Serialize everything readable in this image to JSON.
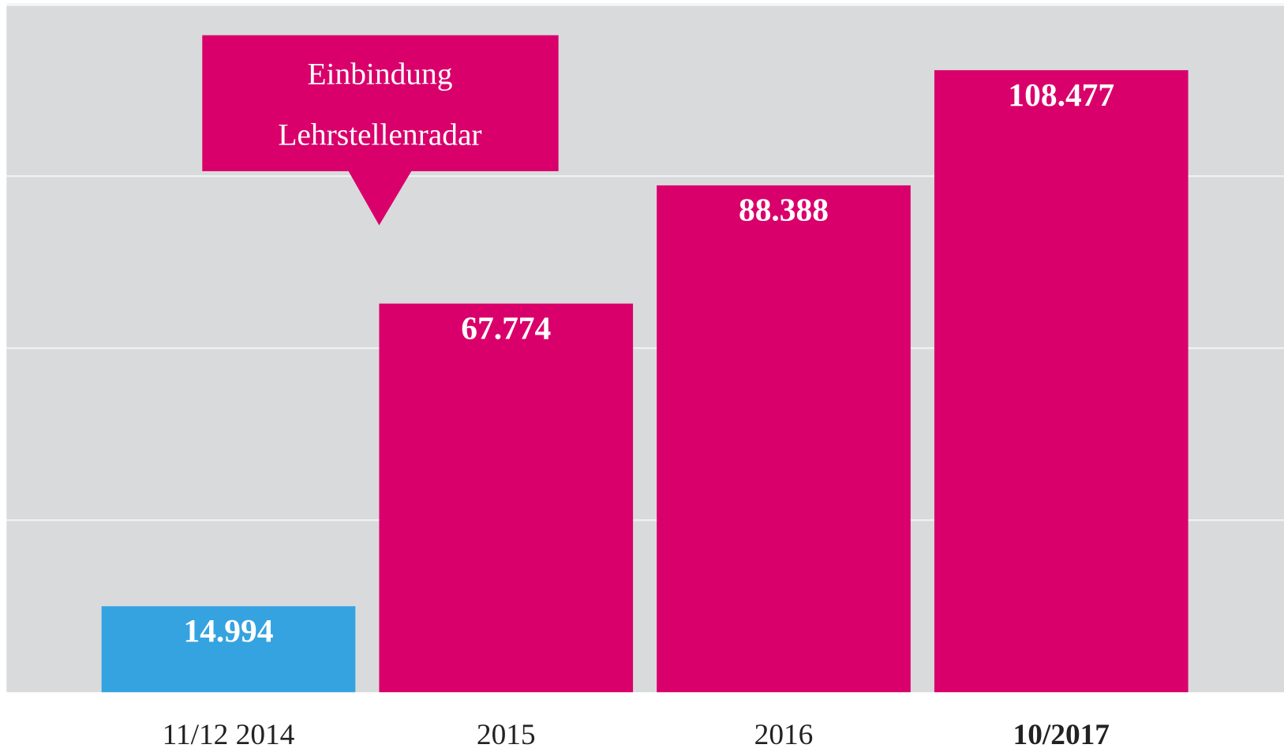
{
  "chart_data": {
    "type": "bar",
    "categories": [
      "11/12 2014",
      "2015",
      "2016",
      "10/2017"
    ],
    "values": [
      14994,
      67774,
      88388,
      108477
    ],
    "value_labels": [
      "14.994",
      "67.774",
      "88.388",
      "108.477"
    ],
    "colors": [
      "#35a3e0",
      "#d9006b",
      "#d9006b",
      "#d9006b"
    ],
    "bold_category": 3,
    "ylim": [
      0,
      120000
    ],
    "yticks": [
      30000,
      60000,
      90000,
      120000
    ],
    "grid": true,
    "annotation": {
      "lines": [
        "Einbindung",
        "Lehrstellenradar"
      ],
      "color": "#d9006b",
      "category": 1
    }
  }
}
